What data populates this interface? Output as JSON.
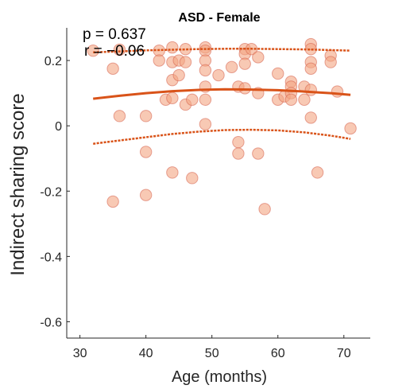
{
  "chart_data": {
    "type": "scatter",
    "title": "ASD - Female",
    "xlabel": "Age (months)",
    "ylabel": "Indirect sharing score",
    "xlim": [
      28,
      74
    ],
    "ylim": [
      -0.65,
      0.3
    ],
    "xticks": [
      30,
      40,
      50,
      60,
      70
    ],
    "yticks": [
      -0.6,
      -0.4,
      -0.2,
      0,
      0.2
    ],
    "ytick_labels": [
      "-0.6",
      "-0.4",
      "-0.2",
      "0",
      "0.2"
    ],
    "grid": false,
    "annotations": {
      "p": "p = 0.637",
      "r": "r = −0.06"
    },
    "colors": {
      "points": "#f4a582",
      "point_edge": "#d6604d",
      "fit": "#d95319"
    },
    "fit": {
      "x": [
        32,
        36,
        40,
        44,
        48,
        52,
        56,
        60,
        64,
        68,
        71
      ],
      "mean": [
        0.083,
        0.092,
        0.1,
        0.106,
        0.11,
        0.112,
        0.111,
        0.109,
        0.105,
        0.1,
        0.095
      ],
      "upper": [
        0.225,
        0.228,
        0.231,
        0.233,
        0.235,
        0.236,
        0.236,
        0.235,
        0.234,
        0.232,
        0.23
      ],
      "lower": [
        -0.055,
        -0.045,
        -0.035,
        -0.025,
        -0.018,
        -0.013,
        -0.012,
        -0.014,
        -0.02,
        -0.03,
        -0.04
      ]
    },
    "points": [
      {
        "x": 32,
        "y": 0.23
      },
      {
        "x": 35,
        "y": 0.175
      },
      {
        "x": 35,
        "y": -0.232
      },
      {
        "x": 36,
        "y": 0.03
      },
      {
        "x": 36,
        "y": 0.233
      },
      {
        "x": 40,
        "y": 0.03
      },
      {
        "x": 40,
        "y": -0.08
      },
      {
        "x": 40,
        "y": -0.212
      },
      {
        "x": 42,
        "y": 0.23
      },
      {
        "x": 42,
        "y": 0.2
      },
      {
        "x": 43,
        "y": 0.08
      },
      {
        "x": 44,
        "y": 0.24
      },
      {
        "x": 44,
        "y": 0.195
      },
      {
        "x": 44,
        "y": 0.14
      },
      {
        "x": 44,
        "y": 0.085
      },
      {
        "x": 44,
        "y": -0.143
      },
      {
        "x": 45,
        "y": 0.2
      },
      {
        "x": 45,
        "y": 0.155
      },
      {
        "x": 46,
        "y": 0.235
      },
      {
        "x": 46,
        "y": 0.195
      },
      {
        "x": 46,
        "y": 0.065
      },
      {
        "x": 47,
        "y": 0.08
      },
      {
        "x": 47,
        "y": -0.16
      },
      {
        "x": 49,
        "y": 0.24
      },
      {
        "x": 49,
        "y": 0.23
      },
      {
        "x": 49,
        "y": 0.2
      },
      {
        "x": 49,
        "y": 0.17
      },
      {
        "x": 49,
        "y": 0.12
      },
      {
        "x": 49,
        "y": 0.08
      },
      {
        "x": 49,
        "y": 0.005
      },
      {
        "x": 51,
        "y": 0.155
      },
      {
        "x": 53,
        "y": 0.18
      },
      {
        "x": 54,
        "y": 0.12
      },
      {
        "x": 54,
        "y": -0.05
      },
      {
        "x": 54,
        "y": -0.085
      },
      {
        "x": 55,
        "y": 0.235
      },
      {
        "x": 55,
        "y": 0.22
      },
      {
        "x": 55,
        "y": 0.19
      },
      {
        "x": 55,
        "y": 0.115
      },
      {
        "x": 56,
        "y": 0.235
      },
      {
        "x": 57,
        "y": 0.21
      },
      {
        "x": 57,
        "y": 0.1
      },
      {
        "x": 57,
        "y": -0.085
      },
      {
        "x": 58,
        "y": -0.255
      },
      {
        "x": 60,
        "y": 0.16
      },
      {
        "x": 60,
        "y": 0.08
      },
      {
        "x": 61,
        "y": 0.09
      },
      {
        "x": 62,
        "y": 0.135
      },
      {
        "x": 62,
        "y": 0.12
      },
      {
        "x": 62,
        "y": 0.1
      },
      {
        "x": 62,
        "y": 0.08
      },
      {
        "x": 64,
        "y": 0.12
      },
      {
        "x": 64,
        "y": 0.08
      },
      {
        "x": 65,
        "y": 0.25
      },
      {
        "x": 65,
        "y": 0.235
      },
      {
        "x": 65,
        "y": 0.195
      },
      {
        "x": 65,
        "y": 0.175
      },
      {
        "x": 65,
        "y": 0.11
      },
      {
        "x": 65,
        "y": 0.025
      },
      {
        "x": 66,
        "y": -0.143
      },
      {
        "x": 68,
        "y": 0.215
      },
      {
        "x": 68,
        "y": 0.195
      },
      {
        "x": 69,
        "y": 0.105
      },
      {
        "x": 71,
        "y": -0.008
      }
    ]
  }
}
